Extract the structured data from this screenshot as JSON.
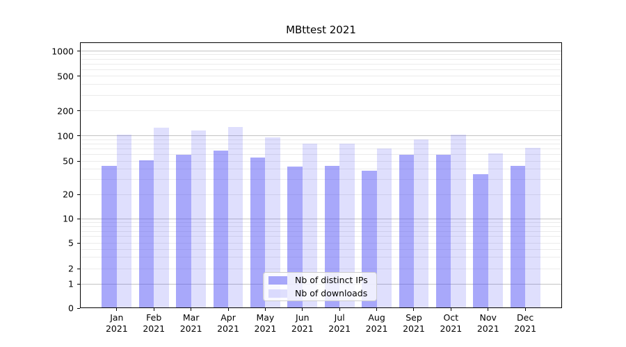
{
  "chart_data": {
    "type": "bar",
    "title": "MBttest 2021",
    "year_label": "2021",
    "categories": [
      "Jan",
      "Feb",
      "Mar",
      "Apr",
      "May",
      "Jun",
      "Jul",
      "Aug",
      "Sep",
      "Oct",
      "Nov",
      "Dec"
    ],
    "series": [
      {
        "name": "Nb of distinct IPs",
        "color": "rgba(85,85,245,0.51)",
        "values": [
          44,
          51,
          59,
          66,
          55,
          43,
          44,
          38,
          59,
          59,
          35,
          44
        ]
      },
      {
        "name": "Nb of downloads",
        "color": "rgba(85,85,245,0.19)",
        "values": [
          102,
          125,
          116,
          128,
          95,
          80,
          81,
          70,
          90,
          103,
          62,
          72
        ]
      }
    ],
    "yscale": "symlog",
    "yticks": [
      0,
      1,
      2,
      5,
      10,
      20,
      50,
      100,
      200,
      500,
      1000
    ],
    "minor_gridline_values": [
      2,
      3,
      4,
      5,
      6,
      7,
      8,
      9,
      20,
      30,
      40,
      50,
      60,
      70,
      80,
      90,
      200,
      300,
      400,
      500,
      600,
      700,
      800,
      900
    ],
    "major_gridline_values": [
      1,
      10,
      100,
      1000
    ],
    "ylim": [
      0,
      1300
    ],
    "grid": true,
    "legend_position": "lower center"
  },
  "colors": {
    "major_grid": "#c3c3c3",
    "minor_grid": "#ebebeb",
    "axis": "#000000",
    "background": "#ffffff"
  }
}
